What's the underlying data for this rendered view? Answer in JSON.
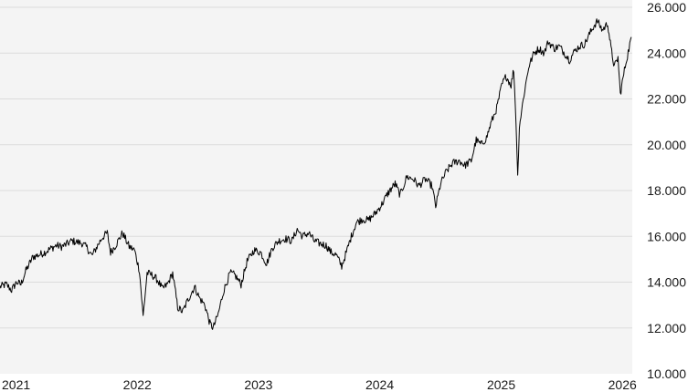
{
  "chart_data": {
    "type": "line",
    "title": "",
    "xlabel": "",
    "ylabel": "",
    "ylim": [
      10000,
      26000
    ],
    "xlim": [
      "2021-01-01",
      "2026-03-20"
    ],
    "grid": "horizontal",
    "legend": "none",
    "y_ticks": [
      {
        "value": 10000,
        "label": "10.000"
      },
      {
        "value": 12000,
        "label": "12.000"
      },
      {
        "value": 14000,
        "label": "14.000"
      },
      {
        "value": 16000,
        "label": "16.000"
      },
      {
        "value": 18000,
        "label": "18.000"
      },
      {
        "value": 20000,
        "label": "20.000"
      },
      {
        "value": 22000,
        "label": "22.000"
      },
      {
        "value": 24000,
        "label": "24.000"
      },
      {
        "value": 26000,
        "label": "26.000"
      }
    ],
    "x_ticks": [
      {
        "date": "2021-01-01",
        "label": "2021"
      },
      {
        "date": "2022-01-01",
        "label": "2022"
      },
      {
        "date": "2023-01-01",
        "label": "2023"
      },
      {
        "date": "2024-01-01",
        "label": "2024"
      },
      {
        "date": "2025-01-01",
        "label": "2025"
      },
      {
        "date": "2026-01-01",
        "label": "2026"
      }
    ],
    "series": [
      {
        "color": "#000000",
        "points": [
          [
            "2021-01-01",
            13800
          ],
          [
            "2021-01-20",
            13900
          ],
          [
            "2021-02-05",
            13650
          ],
          [
            "2021-02-20",
            14000
          ],
          [
            "2021-03-05",
            13900
          ],
          [
            "2021-03-20",
            14500
          ],
          [
            "2021-04-10",
            15100
          ],
          [
            "2021-04-30",
            15200
          ],
          [
            "2021-05-15",
            15300
          ],
          [
            "2021-06-01",
            15450
          ],
          [
            "2021-06-20",
            15600
          ],
          [
            "2021-07-05",
            15550
          ],
          [
            "2021-07-20",
            15650
          ],
          [
            "2021-08-05",
            15800
          ],
          [
            "2021-08-20",
            15750
          ],
          [
            "2021-09-05",
            15700
          ],
          [
            "2021-09-20",
            15500
          ],
          [
            "2021-10-05",
            15150
          ],
          [
            "2021-10-20",
            15550
          ],
          [
            "2021-11-05",
            15950
          ],
          [
            "2021-11-20",
            16150
          ],
          [
            "2021-11-30",
            15300
          ],
          [
            "2021-12-15",
            15600
          ],
          [
            "2022-01-05",
            16150
          ],
          [
            "2022-01-25",
            15550
          ],
          [
            "2022-02-10",
            15400
          ],
          [
            "2022-02-25",
            14500
          ],
          [
            "2022-03-08",
            12500
          ],
          [
            "2022-03-20",
            14400
          ],
          [
            "2022-04-05",
            14300
          ],
          [
            "2022-04-20",
            14100
          ],
          [
            "2022-05-05",
            13700
          ],
          [
            "2022-05-20",
            13900
          ],
          [
            "2022-06-05",
            14400
          ],
          [
            "2022-06-20",
            12900
          ],
          [
            "2022-07-05",
            12700
          ],
          [
            "2022-07-20",
            13200
          ],
          [
            "2022-08-10",
            13800
          ],
          [
            "2022-08-25",
            13300
          ],
          [
            "2022-09-10",
            13000
          ],
          [
            "2022-09-25",
            12200
          ],
          [
            "2022-10-05",
            12000
          ],
          [
            "2022-10-20",
            12600
          ],
          [
            "2022-11-05",
            13600
          ],
          [
            "2022-11-25",
            14400
          ],
          [
            "2022-12-10",
            14300
          ],
          [
            "2022-12-28",
            13900
          ],
          [
            "2023-01-15",
            14900
          ],
          [
            "2023-02-05",
            15400
          ],
          [
            "2023-02-25",
            15300
          ],
          [
            "2023-03-15",
            14800
          ],
          [
            "2023-04-01",
            15500
          ],
          [
            "2023-04-20",
            15800
          ],
          [
            "2023-05-10",
            15900
          ],
          [
            "2023-05-30",
            15800
          ],
          [
            "2023-06-15",
            16300
          ],
          [
            "2023-07-01",
            16000
          ],
          [
            "2023-07-20",
            16150
          ],
          [
            "2023-08-05",
            15800
          ],
          [
            "2023-08-20",
            15700
          ],
          [
            "2023-09-10",
            15600
          ],
          [
            "2023-09-25",
            15300
          ],
          [
            "2023-10-10",
            15200
          ],
          [
            "2023-10-27",
            14700
          ],
          [
            "2023-11-10",
            15300
          ],
          [
            "2023-11-25",
            16000
          ],
          [
            "2023-12-10",
            16600
          ],
          [
            "2023-12-28",
            16750
          ],
          [
            "2024-01-15",
            16700
          ],
          [
            "2024-02-05",
            17000
          ],
          [
            "2024-02-25",
            17400
          ],
          [
            "2024-03-15",
            17900
          ],
          [
            "2024-04-05",
            18300
          ],
          [
            "2024-04-20",
            17800
          ],
          [
            "2024-05-10",
            18600
          ],
          [
            "2024-05-30",
            18500
          ],
          [
            "2024-06-15",
            18200
          ],
          [
            "2024-07-05",
            18500
          ],
          [
            "2024-07-25",
            18200
          ],
          [
            "2024-08-05",
            17300
          ],
          [
            "2024-08-20",
            18300
          ],
          [
            "2024-09-05",
            18800
          ],
          [
            "2024-09-25",
            19200
          ],
          [
            "2024-10-15",
            19300
          ],
          [
            "2024-11-01",
            19100
          ],
          [
            "2024-11-20",
            19300
          ],
          [
            "2024-12-05",
            20200
          ],
          [
            "2024-12-20",
            20000
          ],
          [
            "2025-01-05",
            20300
          ],
          [
            "2025-01-20",
            21000
          ],
          [
            "2025-02-05",
            21600
          ],
          [
            "2025-02-20",
            22600
          ],
          [
            "2025-03-05",
            23000
          ],
          [
            "2025-03-20",
            22600
          ],
          [
            "2025-03-28",
            23300
          ],
          [
            "2025-04-04",
            21000
          ],
          [
            "2025-04-09",
            18600
          ],
          [
            "2025-04-14",
            20800
          ],
          [
            "2025-04-28",
            22200
          ],
          [
            "2025-05-12",
            23400
          ],
          [
            "2025-05-28",
            24000
          ],
          [
            "2025-06-12",
            24200
          ],
          [
            "2025-06-28",
            24000
          ],
          [
            "2025-07-10",
            24500
          ],
          [
            "2025-07-28",
            24200
          ],
          [
            "2025-08-12",
            24300
          ],
          [
            "2025-08-28",
            24000
          ],
          [
            "2025-09-12",
            23700
          ],
          [
            "2025-09-28",
            24100
          ],
          [
            "2025-10-12",
            24300
          ],
          [
            "2025-10-28",
            24400
          ],
          [
            "2025-11-10",
            24800
          ],
          [
            "2025-11-25",
            25200
          ],
          [
            "2025-12-05",
            25400
          ],
          [
            "2025-12-20",
            25000
          ],
          [
            "2026-01-05",
            25300
          ],
          [
            "2026-01-15",
            24200
          ],
          [
            "2026-01-25",
            23400
          ],
          [
            "2026-02-05",
            23800
          ],
          [
            "2026-02-12",
            22200
          ],
          [
            "2026-02-20",
            22900
          ],
          [
            "2026-03-01",
            23600
          ],
          [
            "2026-03-10",
            24200
          ],
          [
            "2026-03-17",
            24700
          ]
        ]
      }
    ]
  }
}
